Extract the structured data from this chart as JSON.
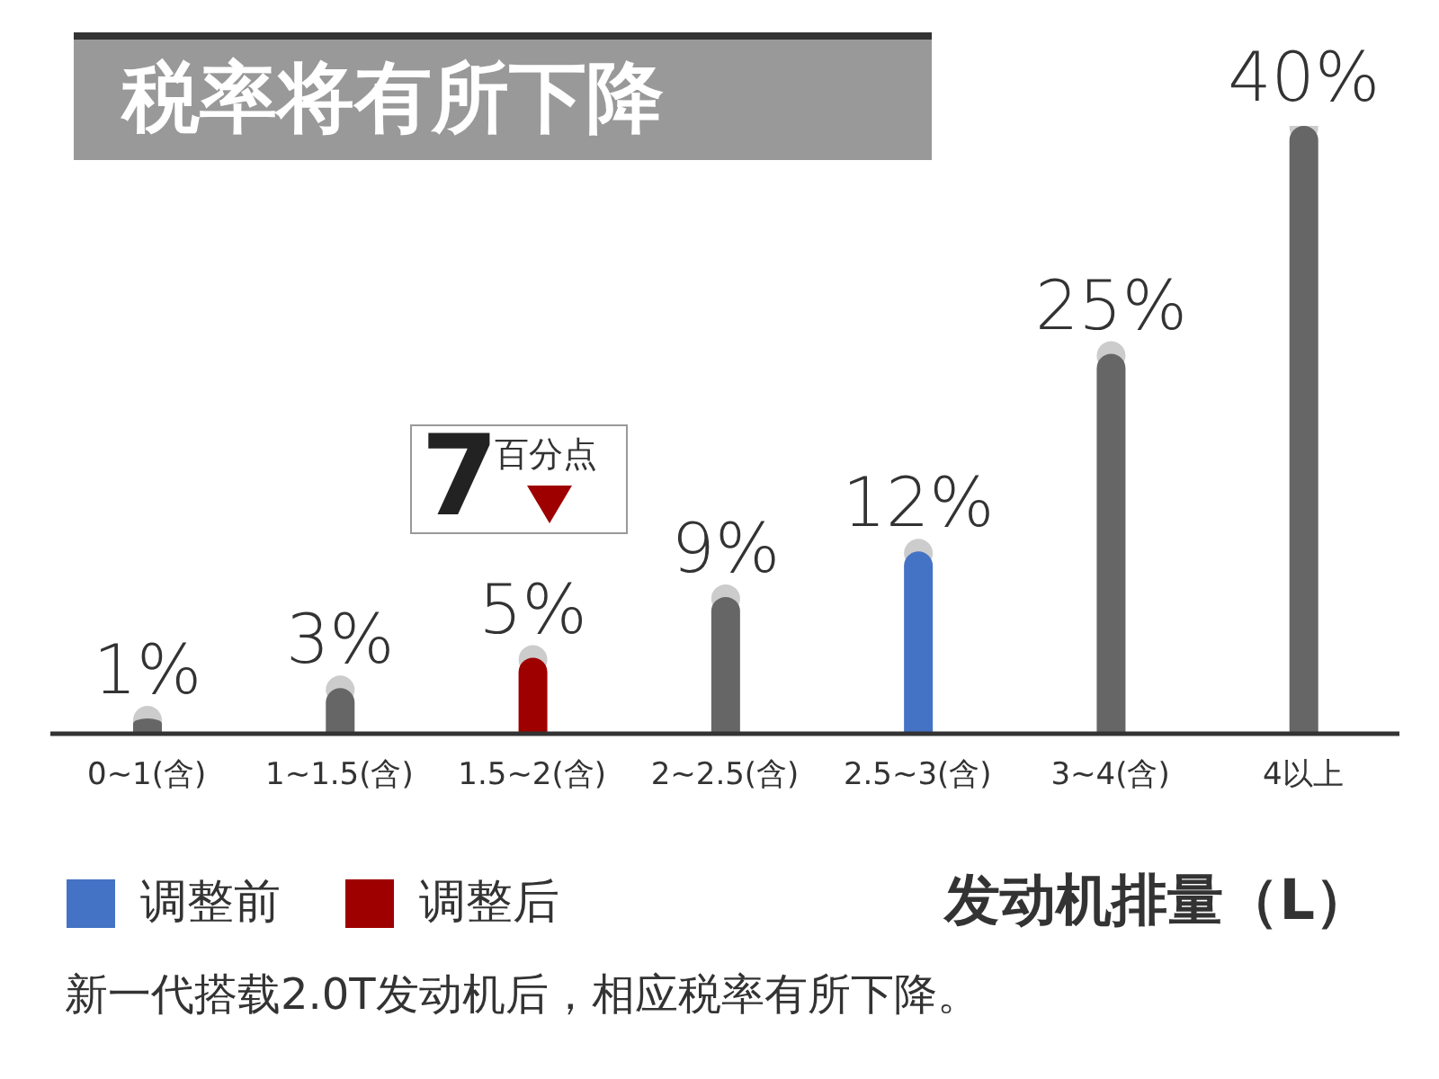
{
  "chart_data": {
    "type": "bar",
    "title": "税率将有所下降",
    "categories": [
      "0~1(含)",
      "1~1.5(含)",
      "1.5~2(含)",
      "2~2.5(含)",
      "2.5~3(含)",
      "3~4(含)",
      "4以上"
    ],
    "series": [
      {
        "name": "调整前",
        "color": "#4472c4",
        "values": [
          null,
          null,
          null,
          null,
          12,
          null,
          null
        ],
        "value_labels": [
          null,
          null,
          null,
          null,
          "12%",
          null,
          null
        ]
      },
      {
        "name": "调整后",
        "color": "#9e0000",
        "values": [
          null,
          null,
          5,
          null,
          null,
          null,
          null
        ],
        "value_labels": [
          null,
          null,
          "5%",
          null,
          null,
          null,
          null
        ]
      },
      {
        "color": "#666666",
        "values": [
          1,
          3,
          null,
          9,
          null,
          25,
          40
        ],
        "value_labels": [
          "1%",
          "3%",
          null,
          "9%",
          null,
          "25%",
          "40%"
        ]
      }
    ],
    "xlabel": "发动机排量（L）",
    "legend": "bottom left",
    "annotations": [
      "7",
      "百分点",
      "新一代搭载2.0T发动机后，相应税率有所下降。"
    ]
  }
}
